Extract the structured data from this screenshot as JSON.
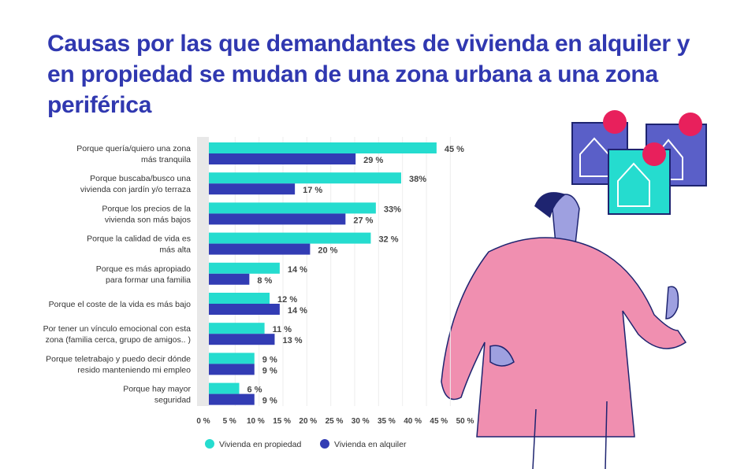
{
  "chart_data": {
    "type": "bar",
    "orientation": "horizontal",
    "title": "Causas por las que demandantes de vivienda en alquiler y en propiedad se mudan de una zona urbana a una zona periférica",
    "categories": [
      [
        "Porque quería/quiero una zona",
        "más tranquila"
      ],
      [
        "Porque buscaba/busco una",
        "vivienda con jardín y/o terraza"
      ],
      [
        "Porque los precios de la",
        "vivienda son más bajos"
      ],
      [
        "Porque la calidad de vida es",
        "más alta"
      ],
      [
        "Porque es más apropiado",
        "para formar una familia"
      ],
      [
        "Porque el coste de la vida es más bajo"
      ],
      [
        "Por tener un vínculo emocional con esta",
        "zona (familia cerca, grupo de amigos.. )"
      ],
      [
        "Porque teletrabajo y puedo decir dónde",
        "resido manteniendo mi empleo"
      ],
      [
        "Porque hay mayor",
        "seguridad"
      ]
    ],
    "series": [
      {
        "name": "Vivienda en propiedad",
        "color": "#25dccf",
        "values": [
          45,
          38,
          33,
          32,
          14,
          12,
          11,
          9,
          6
        ],
        "labels": [
          "45 %",
          "38%",
          "33%",
          "32 %",
          "14 %",
          "12 %",
          "11 %",
          "9 %",
          "6 %"
        ]
      },
      {
        "name": "Vivienda en alquiler",
        "color": "#323cb4",
        "values": [
          29,
          17,
          27,
          20,
          8,
          14,
          13,
          9,
          9
        ],
        "labels": [
          "29 %",
          "17 %",
          "27 %",
          "20 %",
          "8 %",
          "14 %",
          "13 %",
          "9 %",
          "9 %"
        ]
      }
    ],
    "xlim": [
      0,
      50
    ],
    "xticks": [
      "0 %",
      "5 %",
      "10 %",
      "15 %",
      "20 %",
      "25 %",
      "30 %",
      "35 %",
      "40 %",
      "45 %",
      "50 %"
    ],
    "grid": true,
    "legend_position": "bottom"
  }
}
